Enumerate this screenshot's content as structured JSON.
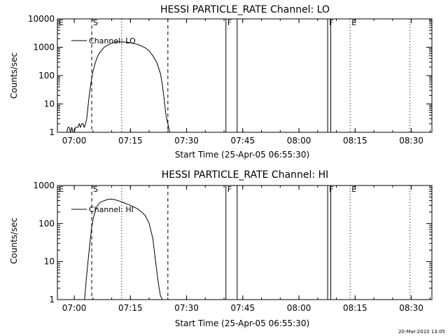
{
  "footer": {
    "timestamp": "20-Mar-2010 13:05"
  },
  "chart_data": [
    {
      "type": "line",
      "title": "HESSI PARTICLE_RATE Channel: LO",
      "xlabel": "Start Time (25-Apr-05 06:55:30)",
      "ylabel": "Counts/sec",
      "yscale": "log",
      "ylim": [
        1,
        10000
      ],
      "xlim": [
        "06:55:30",
        "08:35:30"
      ],
      "xticks": [
        "07:00",
        "07:15",
        "07:30",
        "07:45",
        "08:00",
        "08:15",
        "08:30"
      ],
      "yticks": [
        "1",
        "10",
        "100",
        "1000",
        "10000"
      ],
      "legend": "top-left",
      "series": [
        {
          "name": "Channel: LO",
          "x": [
            "06:58:00",
            "06:58:20",
            "06:58:40",
            "06:59:00",
            "06:59:20",
            "06:59:40",
            "07:00:00",
            "07:00:20",
            "07:00:40",
            "07:01:00",
            "07:01:20",
            "07:01:40",
            "07:02:00",
            "07:02:20",
            "07:02:40",
            "07:03:00",
            "07:03:20",
            "07:03:40",
            "07:04:00",
            "07:04:30",
            "07:05:00",
            "07:05:30",
            "07:06:00",
            "07:06:30",
            "07:07:00",
            "07:07:30",
            "07:08:00",
            "07:09:00",
            "07:10:00",
            "07:11:00",
            "07:12:00",
            "07:13:00",
            "07:14:00",
            "07:15:00",
            "07:16:00",
            "07:17:00",
            "07:18:00",
            "07:19:00",
            "07:20:00",
            "07:21:00",
            "07:22:00",
            "07:23:00",
            "07:23:30",
            "07:24:00",
            "07:24:30",
            "07:25:00",
            "07:25:30"
          ],
          "values": [
            1,
            1.5,
            1.5,
            1,
            1.5,
            1,
            1,
            1.5,
            1.5,
            1.5,
            2,
            1.5,
            2,
            2,
            1.5,
            2,
            3,
            8,
            20,
            60,
            140,
            250,
            400,
            550,
            700,
            850,
            1000,
            1200,
            1400,
            1500,
            1550,
            1550,
            1500,
            1450,
            1350,
            1250,
            1100,
            950,
            750,
            500,
            300,
            120,
            50,
            15,
            4,
            2,
            1
          ]
        }
      ],
      "markers": [
        {
          "time": "06:55:30",
          "label": "E",
          "style": "dotted"
        },
        {
          "time": "07:04:40",
          "label": "S",
          "style": "dashed"
        },
        {
          "time": "07:12:40",
          "label": "",
          "style": "dotted"
        },
        {
          "time": "07:25:00",
          "label": "",
          "style": "dashed"
        },
        {
          "time": "07:40:30",
          "label": "F",
          "style": "solid"
        },
        {
          "time": "07:43:30",
          "label": "",
          "style": "solid"
        },
        {
          "time": "08:07:40",
          "label": "F",
          "style": "solid"
        },
        {
          "time": "08:08:30",
          "label": "",
          "style": "solid"
        },
        {
          "time": "08:13:40",
          "label": "E",
          "style": "dotted"
        },
        {
          "time": "08:29:40",
          "label": "",
          "style": "dotted"
        }
      ]
    },
    {
      "type": "line",
      "title": "HESSI PARTICLE_RATE Channel: HI",
      "xlabel": "Start Time (25-Apr-05 06:55:30)",
      "ylabel": "Counts/sec",
      "yscale": "log",
      "ylim": [
        1,
        1000
      ],
      "xlim": [
        "06:55:30",
        "08:35:30"
      ],
      "xticks": [
        "07:00",
        "07:15",
        "07:30",
        "07:45",
        "08:00",
        "08:15",
        "08:30"
      ],
      "yticks": [
        "1",
        "10",
        "100",
        "1000"
      ],
      "legend": "top-left",
      "series": [
        {
          "name": "Channel: HI",
          "x": [
            "07:02:45",
            "07:03:10",
            "07:03:40",
            "07:04:10",
            "07:04:40",
            "07:05:10",
            "07:05:40",
            "07:06:10",
            "07:06:40",
            "07:07:10",
            "07:08:00",
            "07:09:00",
            "07:10:00",
            "07:11:00",
            "07:12:00",
            "07:13:00",
            "07:14:00",
            "07:15:00",
            "07:16:00",
            "07:17:00",
            "07:18:00",
            "07:19:00",
            "07:20:00",
            "07:21:00",
            "07:21:30",
            "07:22:00",
            "07:22:30",
            "07:23:00",
            "07:23:30"
          ],
          "values": [
            1,
            3,
            10,
            30,
            80,
            150,
            220,
            290,
            340,
            370,
            400,
            430,
            440,
            420,
            390,
            360,
            330,
            300,
            270,
            240,
            200,
            160,
            100,
            40,
            15,
            6,
            2.5,
            1.3,
            1
          ]
        }
      ],
      "markers": [
        {
          "time": "06:55:30",
          "label": "E",
          "style": "dotted"
        },
        {
          "time": "07:04:40",
          "label": "S",
          "style": "dashed"
        },
        {
          "time": "07:12:40",
          "label": "",
          "style": "dotted"
        },
        {
          "time": "07:25:00",
          "label": "",
          "style": "dashed"
        },
        {
          "time": "07:40:30",
          "label": "F",
          "style": "solid"
        },
        {
          "time": "07:43:30",
          "label": "",
          "style": "solid"
        },
        {
          "time": "08:07:40",
          "label": "F",
          "style": "solid"
        },
        {
          "time": "08:08:30",
          "label": "",
          "style": "solid"
        },
        {
          "time": "08:13:40",
          "label": "E",
          "style": "dotted"
        },
        {
          "time": "08:29:40",
          "label": "",
          "style": "dotted"
        }
      ]
    }
  ]
}
